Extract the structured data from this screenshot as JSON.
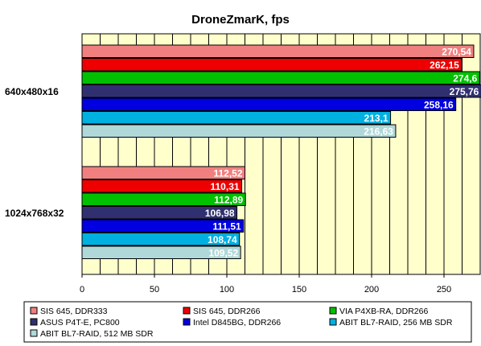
{
  "chart_data": {
    "type": "bar",
    "orientation": "horizontal",
    "title": "DroneZmarK, fps",
    "categories": [
      "640x480x16",
      "1024x768x32"
    ],
    "xlim": [
      0,
      275
    ],
    "xticks": [
      0,
      50,
      100,
      150,
      200,
      250
    ],
    "grid": true,
    "legend_position": "bottom",
    "series": [
      {
        "name": "SIS 645, DDR333",
        "color": "#f08080",
        "values": [
          270.54,
          112.52
        ],
        "labels": [
          "270,54",
          "112,52"
        ]
      },
      {
        "name": "SIS 645, DDR266",
        "color": "#ee0000",
        "values": [
          262.15,
          110.31
        ],
        "labels": [
          "262,15",
          "110,31"
        ]
      },
      {
        "name": "VIA P4XB-RA, DDR266",
        "color": "#00c000",
        "values": [
          274.6,
          112.89
        ],
        "labels": [
          "274,6",
          "112,89"
        ]
      },
      {
        "name": "ASUS P4T-E, PC800",
        "color": "#303070",
        "values": [
          275.76,
          106.98
        ],
        "labels": [
          "275,76",
          "106,98"
        ]
      },
      {
        "name": "Intel D845BG, DDR266",
        "color": "#0000e0",
        "values": [
          258.16,
          111.51
        ],
        "labels": [
          "258,16",
          "111,51"
        ]
      },
      {
        "name": "ABIT BL7-RAID, 256 MB SDR",
        "color": "#00b0e0",
        "values": [
          213.1,
          108.74
        ],
        "labels": [
          "213,1",
          "108,74"
        ]
      },
      {
        "name": "ABIT BL7-RAID, 512 MB SDR",
        "color": "#b0d8d8",
        "values": [
          216.63,
          109.52
        ],
        "labels": [
          "216,63",
          "109,52"
        ]
      }
    ]
  }
}
